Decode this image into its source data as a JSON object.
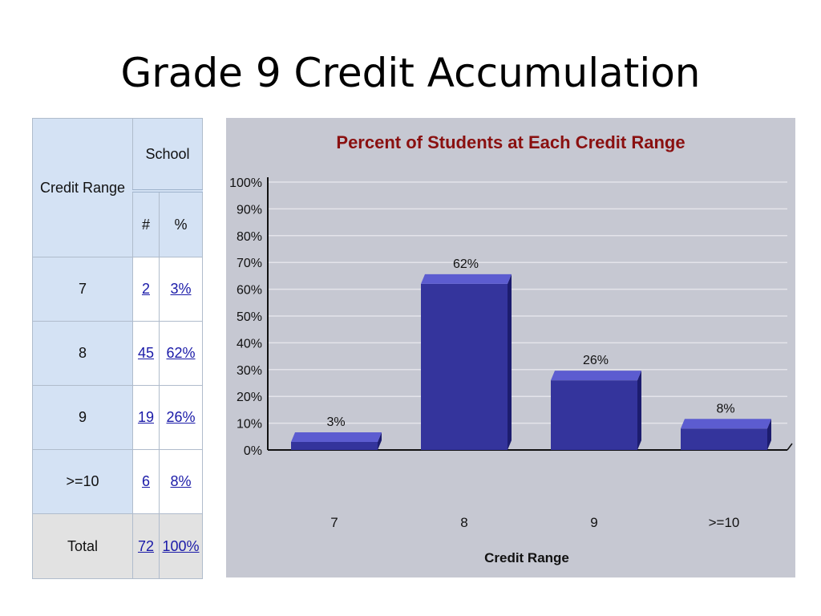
{
  "slide": {
    "title": "Grade 9 Credit Accumulation"
  },
  "table": {
    "col_range": "Credit Range",
    "col_group": "School",
    "col_count": "#",
    "col_pct": "%",
    "rows": [
      {
        "range": "7",
        "count": "2",
        "pct": "3%"
      },
      {
        "range": "8",
        "count": "45",
        "pct": "62%"
      },
      {
        "range": "9",
        "count": "19",
        "pct": "26%"
      },
      {
        "range": ">=10",
        "count": "6",
        "pct": "8%"
      }
    ],
    "total": {
      "label": "Total",
      "count": "72",
      "pct": "100%"
    }
  },
  "colors": {
    "bar_front": "#34349c",
    "bar_top": "#5c5cd0",
    "bar_side": "#1c1c6e",
    "title": "#8a1010",
    "panel": "#c6c8d2"
  },
  "chart_data": {
    "type": "bar",
    "title": "Percent of Students at Each Credit Range",
    "xlabel": "Credit Range",
    "ylabel": "",
    "categories": [
      "7",
      "8",
      "9",
      ">=10"
    ],
    "values": [
      3,
      62,
      26,
      8
    ],
    "data_labels": [
      "3%",
      "62%",
      "26%",
      "8%"
    ],
    "y_ticks": [
      "0%",
      "10%",
      "20%",
      "30%",
      "40%",
      "50%",
      "60%",
      "70%",
      "80%",
      "90%",
      "100%"
    ],
    "ylim": [
      0,
      100
    ],
    "grid": true,
    "legend": "none"
  }
}
